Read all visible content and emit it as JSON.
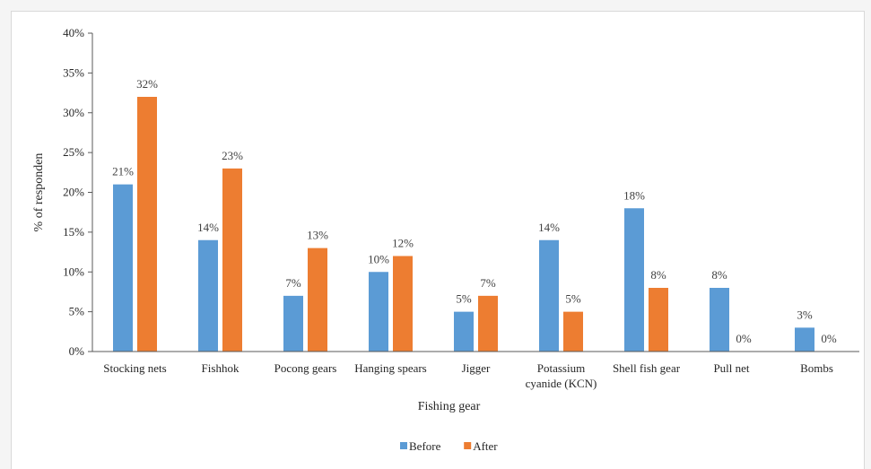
{
  "chart_data": {
    "type": "bar",
    "categories": [
      [
        "Stocking nets"
      ],
      [
        "Fishhok"
      ],
      [
        "Pocong gears"
      ],
      [
        "Hanging spears"
      ],
      [
        "Jigger"
      ],
      [
        "Potassium",
        "cyanide (KCN)"
      ],
      [
        "Shell fish gear"
      ],
      [
        "Pull net"
      ],
      [
        "Bombs"
      ]
    ],
    "series": [
      {
        "name": "Before",
        "color": "#5b9bd5",
        "values": [
          21,
          14,
          7,
          10,
          5,
          14,
          18,
          8,
          3
        ],
        "labels": [
          "21%",
          "14%",
          "7%",
          "10%",
          "5%",
          "14%",
          "18%",
          "8%",
          "3%"
        ]
      },
      {
        "name": "After",
        "color": "#ed7d31",
        "values": [
          32,
          23,
          13,
          12,
          7,
          5,
          8,
          0,
          0
        ],
        "labels": [
          "32%",
          "23%",
          "13%",
          "12%",
          "7%",
          "5%",
          "8%",
          "0%",
          "0%"
        ]
      }
    ],
    "title": "",
    "xlabel": "Fishing gear",
    "ylabel": "% of responden",
    "ylim": [
      0,
      40
    ],
    "yticks": [
      0,
      5,
      10,
      15,
      20,
      25,
      30,
      35,
      40
    ],
    "ytick_labels": [
      "0%",
      "5%",
      "10%",
      "15%",
      "20%",
      "25%",
      "30%",
      "35%",
      "40%"
    ],
    "grid": false,
    "legend_position": "bottom"
  }
}
